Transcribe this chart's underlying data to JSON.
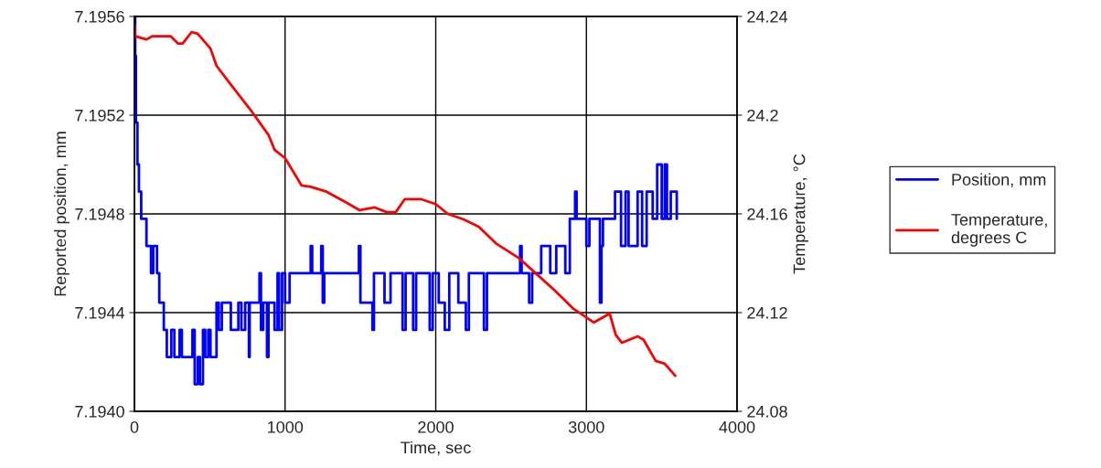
{
  "chart_data": {
    "type": "line",
    "xlabel": "Time, sec",
    "ylabel": "Reported position, mm",
    "y2label": "Temperature, °C",
    "xlim": [
      0,
      4000
    ],
    "xticks": [
      0,
      1000,
      2000,
      3000,
      4000
    ],
    "ylim": [
      7.194,
      7.1956
    ],
    "yticks": [
      {
        "value": 7.194,
        "label": "7.1940"
      },
      7.1944,
      7.1948,
      7.1952,
      7.1956
    ],
    "y2lim": [
      24.08,
      24.24
    ],
    "y2ticks": [
      24.08,
      24.12,
      24.16,
      24.2,
      24.24
    ],
    "grid": true,
    "legend": "right",
    "line_style": "solid",
    "marker": "none",
    "series": [
      {
        "name": "Position, mm",
        "type": "step",
        "color": "#0000ff",
        "x": [
          0,
          5,
          10,
          20,
          30,
          45,
          80,
          110,
          125,
          150,
          165,
          195,
          215,
          245,
          265,
          300,
          315,
          385,
          400,
          420,
          435,
          455,
          470,
          490,
          505,
          545,
          560,
          580,
          640,
          690,
          710,
          735,
          760,
          765,
          830,
          840,
          855,
          880,
          890,
          930,
          950,
          960,
          980,
          1000,
          1030,
          1170,
          1180,
          1240,
          1250,
          1260,
          1490,
          1500,
          1580,
          1590,
          1660,
          1700,
          1780,
          1800,
          1850,
          1870,
          1960,
          1980,
          2020,
          2060,
          2090,
          2150,
          2200,
          2220,
          2320,
          2340,
          2560,
          2570,
          2620,
          2640,
          2700,
          2760,
          2800,
          2860,
          2890,
          2925,
          2935,
          3000,
          3020,
          3090,
          3100,
          3110,
          3190,
          3230,
          3260,
          3280,
          3340,
          3370,
          3400,
          3440,
          3470,
          3500,
          3520,
          3535,
          3560,
          3600
        ],
        "values": [
          7.1956,
          7.19544,
          7.19517,
          7.195,
          7.19489,
          7.19478,
          7.19467,
          7.19456,
          7.19467,
          7.19456,
          7.19444,
          7.19433,
          7.19422,
          7.19433,
          7.19422,
          7.19433,
          7.19422,
          7.19433,
          7.19411,
          7.19422,
          7.19411,
          7.19433,
          7.19422,
          7.19433,
          7.19422,
          7.19444,
          7.19433,
          7.19444,
          7.19433,
          7.19444,
          7.19433,
          7.19444,
          7.19422,
          7.19444,
          7.19456,
          7.19433,
          7.19444,
          7.19422,
          7.19444,
          7.19433,
          7.19456,
          7.19433,
          7.19456,
          7.19444,
          7.19456,
          7.19467,
          7.19456,
          7.19467,
          7.19444,
          7.19456,
          7.19467,
          7.19444,
          7.19433,
          7.19456,
          7.19444,
          7.19456,
          7.19433,
          7.19456,
          7.19433,
          7.19456,
          7.19433,
          7.19456,
          7.19444,
          7.19433,
          7.19456,
          7.19444,
          7.19433,
          7.19456,
          7.19433,
          7.19456,
          7.19467,
          7.19456,
          7.19444,
          7.19456,
          7.19467,
          7.19456,
          7.19467,
          7.19456,
          7.19478,
          7.19489,
          7.19478,
          7.19467,
          7.19478,
          7.19444,
          7.19467,
          7.19478,
          7.19489,
          7.19467,
          7.19489,
          7.19467,
          7.19489,
          7.19467,
          7.19489,
          7.19478,
          7.195,
          7.19478,
          7.195,
          7.19478,
          7.19489,
          7.19478
        ]
      },
      {
        "name": "Temperature,\ndegrees C",
        "axis": "y2",
        "color": "#ff0000",
        "x": [
          0,
          5,
          80,
          120,
          240,
          290,
          320,
          380,
          420,
          505,
          545,
          645,
          770,
          890,
          930,
          1000,
          1110,
          1170,
          1275,
          1395,
          1495,
          1595,
          1675,
          1735,
          1795,
          1900,
          2000,
          2080,
          2185,
          2285,
          2405,
          2550,
          2670,
          2790,
          2915,
          2990,
          3050,
          3155,
          3195,
          3235,
          3340,
          3380,
          3460,
          3520,
          3590
        ],
        "values": [
          24.2367,
          24.232,
          24.2307,
          24.232,
          24.232,
          24.229,
          24.229,
          24.2337,
          24.233,
          24.227,
          24.22,
          24.212,
          24.2022,
          24.192,
          24.186,
          24.1826,
          24.1715,
          24.171,
          24.169,
          24.165,
          24.1615,
          24.1626,
          24.1607,
          24.1607,
          24.166,
          24.166,
          24.164,
          24.16,
          24.1578,
          24.1548,
          24.1478,
          24.1422,
          24.1356,
          24.129,
          24.1215,
          24.1185,
          24.116,
          24.1196,
          24.111,
          24.1078,
          24.1104,
          24.109,
          24.1004,
          24.0993,
          24.0944
        ]
      }
    ]
  }
}
